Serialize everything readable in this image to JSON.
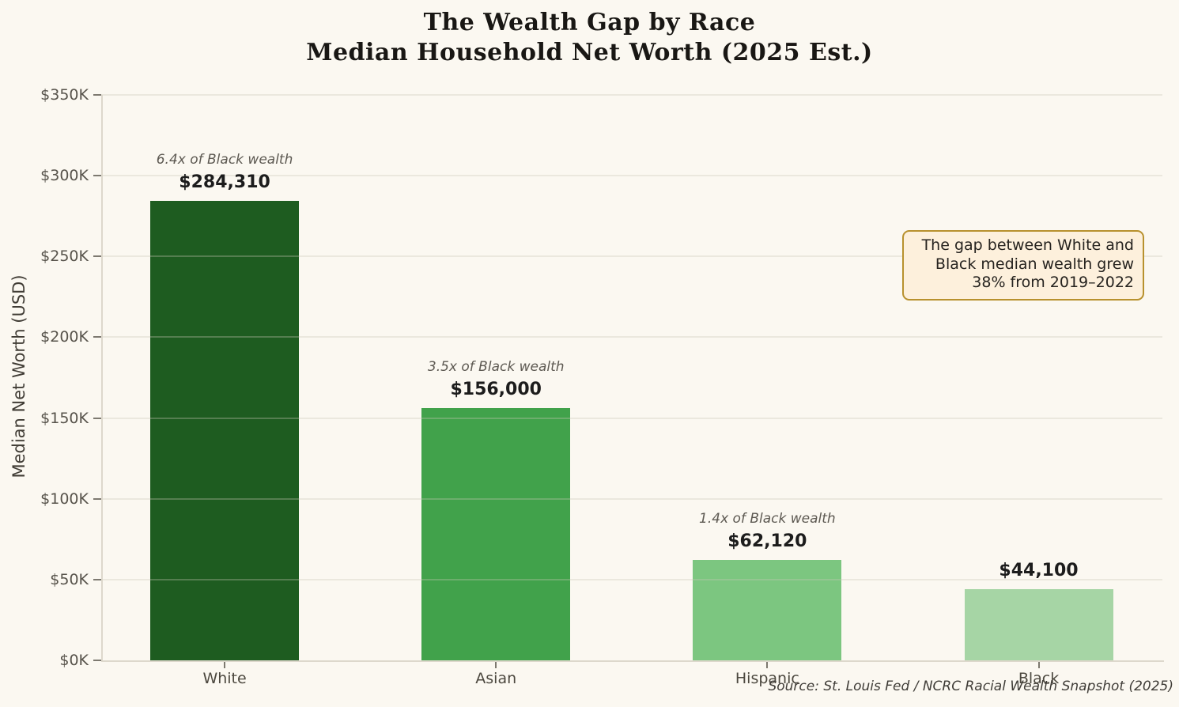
{
  "title": {
    "line1": "The Wealth Gap by Race",
    "line2": "Median Household Net Worth (2025 Est.)"
  },
  "y_axis_title": "Median Net Worth (USD)",
  "annotation": "The gap between White and\nBlack median wealth grew\n38% from 2019–2022",
  "source": "Source: St. Louis Fed / NCRC Racial Wealth Snapshot (2025)",
  "chart_data": {
    "type": "bar",
    "title": "The Wealth Gap by Race — Median Household Net Worth (2025 Est.)",
    "xlabel": "",
    "ylabel": "Median Net Worth (USD)",
    "categories": [
      "White",
      "Asian",
      "Hispanic",
      "Black"
    ],
    "values": [
      284310,
      156000,
      62120,
      44100
    ],
    "value_labels": [
      "$284,310",
      "$156,000",
      "$62,120",
      "$44,100"
    ],
    "multiplier_labels": [
      "6.4x of Black wealth",
      "3.5x of Black wealth",
      "1.4x of Black wealth",
      ""
    ],
    "bar_colors": [
      "#1e5c20",
      "#41a24b",
      "#7cc680",
      "#a6d5a5"
    ],
    "ylim": [
      0,
      350000
    ],
    "y_tick_values": [
      0,
      50000,
      100000,
      150000,
      200000,
      250000,
      300000,
      350000
    ],
    "y_tick_labels": [
      "$0K",
      "$50K",
      "$100K",
      "$150K",
      "$200K",
      "$250K",
      "$300K",
      "$350K"
    ],
    "grid": "horizontal gridlines drawn over bars",
    "legend": "none",
    "background_color": "#fbf8f1",
    "annotation_border_color": "#b8912e",
    "annotation_fill_color": "#fdf0dc"
  }
}
